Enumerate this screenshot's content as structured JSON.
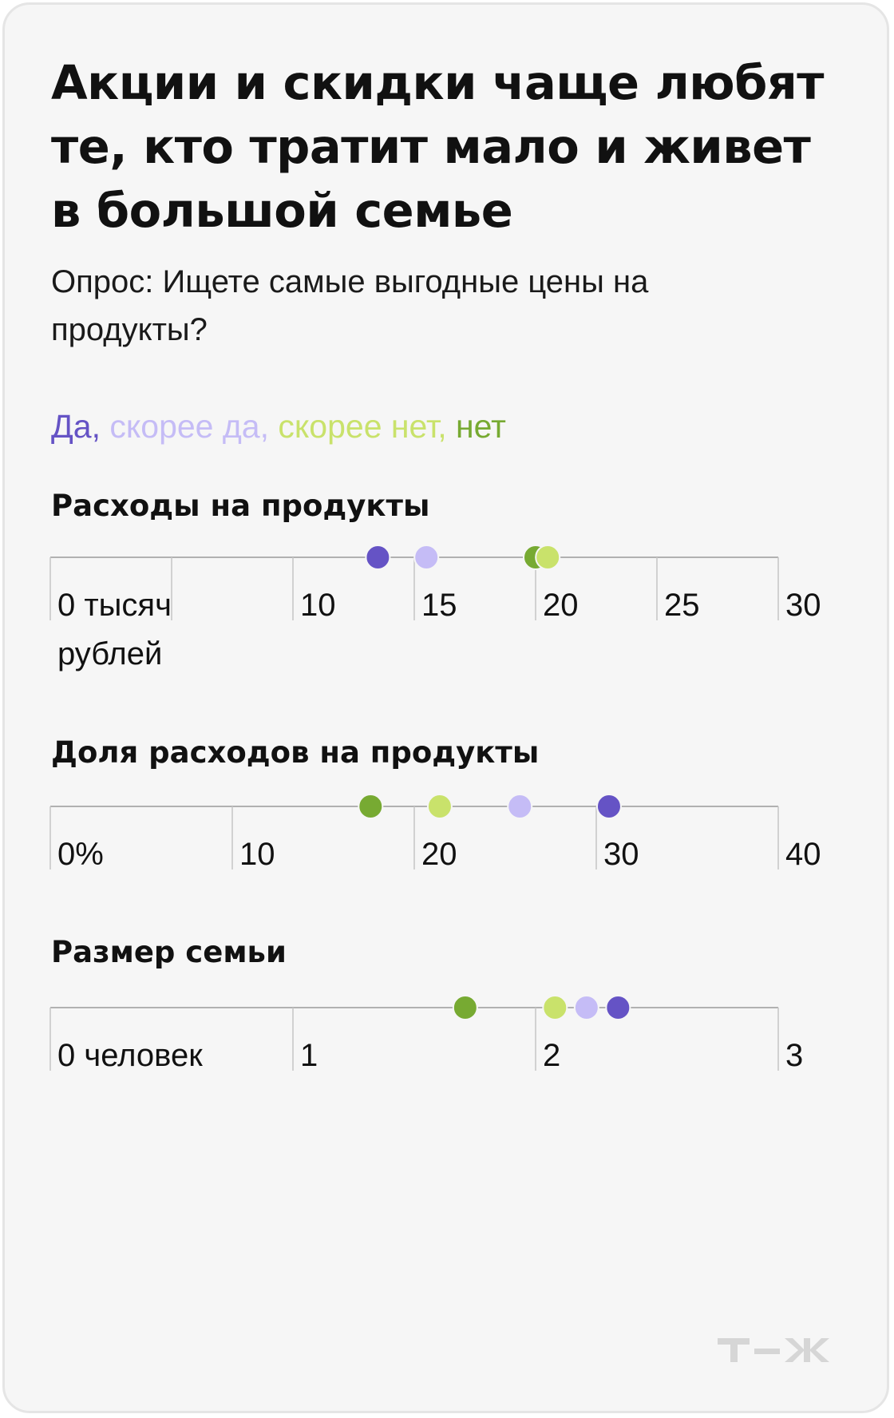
{
  "title": "Акции и скидки чаще любят те, кто тратит мало и живет в большой семье",
  "subtitle": "Опрос: Ищете самые выгодные цены на продукты?",
  "legend": [
    {
      "label": "Да",
      "color": "#6553c5"
    },
    {
      "label": "скорее да",
      "color": "#c5bcf6"
    },
    {
      "label": "скорее нет",
      "color": "#c9e26b"
    },
    {
      "label": "нет",
      "color": "#77aa32"
    }
  ],
  "chart_data": [
    {
      "type": "scatter",
      "title": "Расходы на продукты",
      "unit": "тысяч рублей",
      "xlim": [
        0,
        30
      ],
      "ticks": [
        0,
        5,
        10,
        15,
        20,
        25,
        30
      ],
      "tick_labels": [
        "0 тысяч рублей",
        "",
        "10",
        "15",
        "20",
        "25",
        "30"
      ],
      "series": [
        {
          "name": "Да",
          "value": 13.5,
          "color": "#6553c5"
        },
        {
          "name": "скорее да",
          "value": 15.5,
          "color": "#c5bcf6"
        },
        {
          "name": "скорее нет",
          "value": 20.5,
          "color": "#c9e26b"
        },
        {
          "name": "нет",
          "value": 20.0,
          "color": "#77aa32"
        }
      ]
    },
    {
      "type": "scatter",
      "title": "Доля расходов на продукты",
      "unit": "%",
      "xlim": [
        0,
        40
      ],
      "ticks": [
        0,
        10,
        20,
        30,
        40
      ],
      "tick_labels": [
        "0%",
        "10",
        "20",
        "30",
        "40"
      ],
      "series": [
        {
          "name": "Да",
          "value": 30.7,
          "color": "#6553c5"
        },
        {
          "name": "скорее да",
          "value": 25.8,
          "color": "#c5bcf6"
        },
        {
          "name": "скорее нет",
          "value": 21.4,
          "color": "#c9e26b"
        },
        {
          "name": "нет",
          "value": 17.6,
          "color": "#77aa32"
        }
      ]
    },
    {
      "type": "scatter",
      "title": "Размер семьи",
      "unit": "человек",
      "xlim": [
        0,
        3
      ],
      "ticks": [
        0,
        1,
        2,
        3
      ],
      "tick_labels": [
        "0 человек",
        "1",
        "2",
        "3"
      ],
      "series": [
        {
          "name": "Да",
          "value": 2.34,
          "color": "#6553c5"
        },
        {
          "name": "скорее да",
          "value": 2.21,
          "color": "#c5bcf6"
        },
        {
          "name": "скорее нет",
          "value": 2.08,
          "color": "#c9e26b"
        },
        {
          "name": "нет",
          "value": 1.71,
          "color": "#77aa32"
        }
      ]
    }
  ],
  "logo": "т—ж"
}
